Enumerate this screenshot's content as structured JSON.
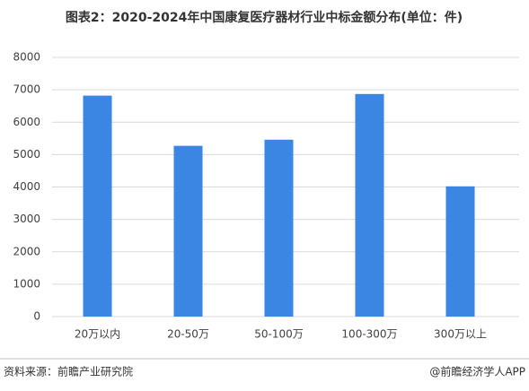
{
  "chart_data": {
    "type": "bar",
    "title": "图表2：2020-2024年中国康复医疗器材行业中标金额分布(单位：件)",
    "categories": [
      "20万以内",
      "20-50万",
      "50-100万",
      "100-300万",
      "300万以上"
    ],
    "values": [
      6820,
      5270,
      5460,
      6870,
      4020
    ],
    "color": "#3a86e2",
    "ylim": [
      0,
      8000
    ],
    "yticks": [
      0,
      1000,
      2000,
      3000,
      4000,
      5000,
      6000,
      7000,
      8000
    ],
    "grid": true,
    "source": "资料来源：前瞻产业研究院",
    "credit": "@前瞻经济学人APP"
  }
}
